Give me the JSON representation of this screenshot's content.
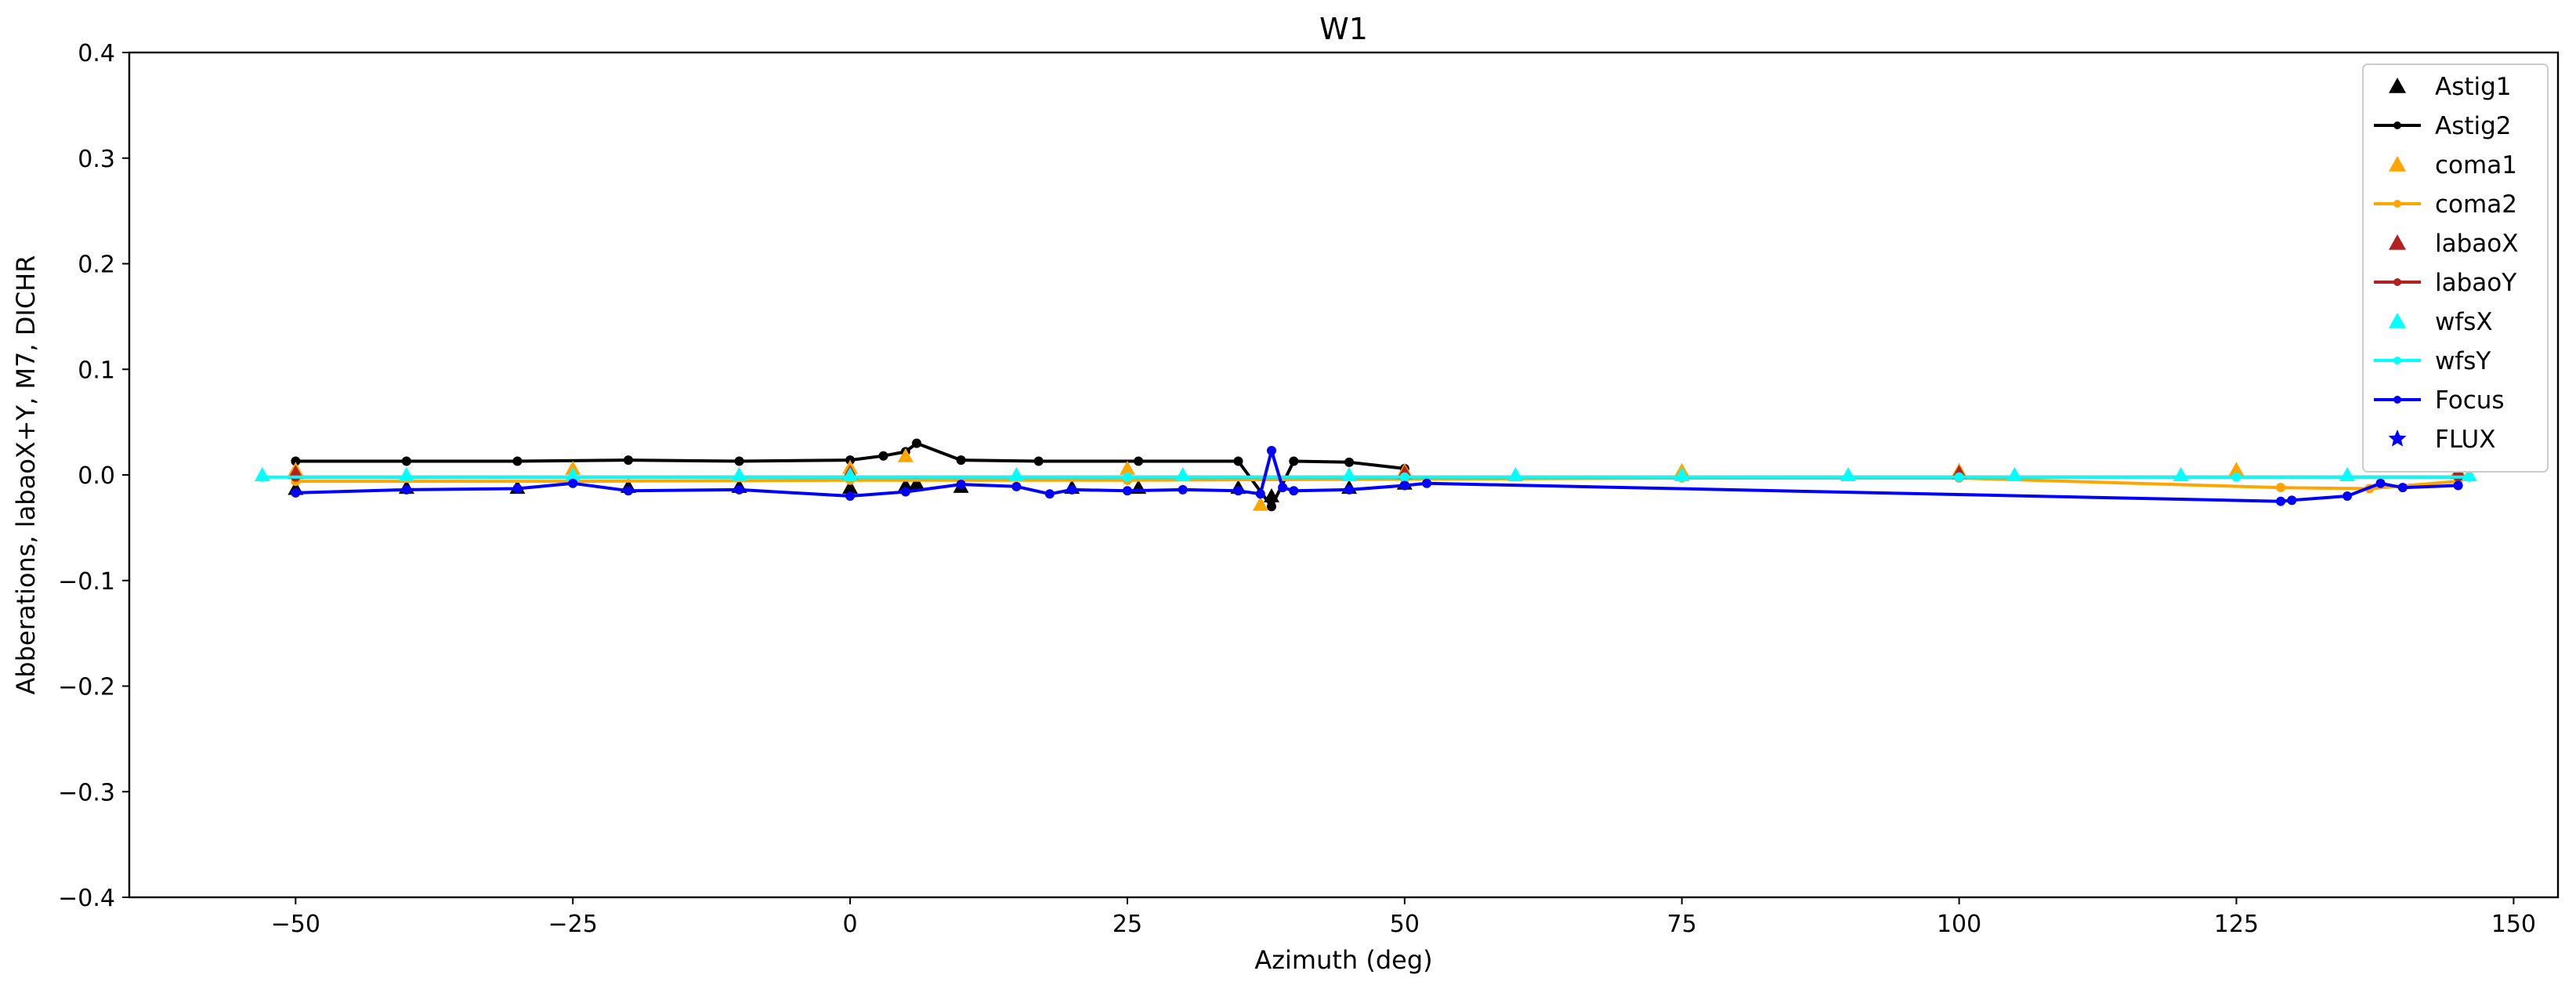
{
  "chart_data": {
    "type": "line",
    "title": "W1",
    "xlabel": "Azimuth (deg)",
    "ylabel": "Abberations, labaoX+Y, M7, DICHR",
    "xlim": [
      -65,
      154
    ],
    "ylim": [
      -0.4,
      0.4
    ],
    "xticks": [
      -50,
      -25,
      0,
      25,
      50,
      75,
      100,
      125,
      150
    ],
    "xtick_labels": [
      "−50",
      "−25",
      "0",
      "25",
      "50",
      "75",
      "100",
      "125",
      "150"
    ],
    "yticks": [
      -0.4,
      -0.3,
      -0.2,
      -0.1,
      0.0,
      0.1,
      0.2,
      0.3,
      0.4
    ],
    "ytick_labels": [
      "−0.4",
      "−0.3",
      "−0.2",
      "−0.1",
      "0.0",
      "0.1",
      "0.2",
      "0.3",
      "0.4"
    ],
    "grid": false,
    "legend_position": "top-right",
    "series": [
      {
        "name": "Astig1",
        "color": "#000000",
        "marker": "triangle",
        "line": false,
        "x": [
          -50,
          -40,
          -30,
          -20,
          -10,
          0,
          5,
          6,
          10,
          20,
          26,
          35,
          38,
          45,
          50
        ],
        "y": [
          -0.013,
          -0.012,
          -0.012,
          -0.011,
          -0.011,
          -0.012,
          -0.01,
          -0.008,
          -0.011,
          -0.012,
          -0.012,
          -0.012,
          -0.02,
          -0.012,
          -0.008
        ]
      },
      {
        "name": "Astig2",
        "color": "#000000",
        "marker": "dot",
        "line": true,
        "x": [
          -50,
          -40,
          -30,
          -20,
          -10,
          0,
          3,
          5,
          6,
          10,
          17,
          26,
          35,
          38,
          40,
          45,
          50
        ],
        "y": [
          0.013,
          0.013,
          0.013,
          0.014,
          0.013,
          0.014,
          0.018,
          0.022,
          0.03,
          0.014,
          0.013,
          0.013,
          0.013,
          -0.03,
          0.013,
          0.012,
          0.006
        ]
      },
      {
        "name": "coma1",
        "color": "#ffa500",
        "marker": "triangle",
        "line": false,
        "x": [
          -50,
          -25,
          0,
          5,
          25,
          37,
          50,
          75,
          100,
          125,
          145
        ],
        "y": [
          0.005,
          0.006,
          0.007,
          0.018,
          0.006,
          -0.028,
          0.004,
          0.004,
          0.004,
          0.005,
          0.004
        ]
      },
      {
        "name": "coma2",
        "color": "#ffa500",
        "marker": "dot",
        "line": true,
        "x": [
          -50,
          -25,
          0,
          25,
          50,
          75,
          100,
          129,
          137,
          145
        ],
        "y": [
          -0.006,
          -0.006,
          -0.005,
          -0.005,
          -0.004,
          -0.003,
          -0.003,
          -0.012,
          -0.013,
          -0.006
        ]
      },
      {
        "name": "labaoX",
        "color": "#b22222",
        "marker": "triangle",
        "line": false,
        "x": [
          -50,
          0,
          50,
          100,
          145
        ],
        "y": [
          0.002,
          0.002,
          0.002,
          0.002,
          0.002
        ]
      },
      {
        "name": "labaoY",
        "color": "#b22222",
        "marker": "dot",
        "line": true,
        "x": [
          -50,
          0,
          50,
          100,
          145
        ],
        "y": [
          -0.002,
          -0.002,
          -0.002,
          -0.002,
          -0.002
        ]
      },
      {
        "name": "wfsX",
        "color": "#00ffff",
        "marker": "triangle",
        "line": false,
        "x": [
          -53,
          -40,
          -25,
          -10,
          0,
          15,
          30,
          45,
          60,
          75,
          90,
          105,
          120,
          135,
          146
        ],
        "y": [
          0.0,
          0.0,
          0.0,
          0.0,
          0.0,
          0.0,
          0.0,
          0.0,
          0.0,
          0.0,
          0.0,
          0.0,
          0.0,
          0.0,
          0.0
        ]
      },
      {
        "name": "wfsY",
        "color": "#00ffff",
        "marker": "dot",
        "line": true,
        "x": [
          -53,
          -25,
          0,
          25,
          50,
          75,
          100,
          125,
          146
        ],
        "y": [
          -0.002,
          -0.002,
          -0.002,
          -0.002,
          -0.002,
          -0.002,
          -0.002,
          -0.002,
          -0.002
        ]
      },
      {
        "name": "Focus",
        "color": "#0000ff",
        "marker": "dot",
        "line": true,
        "x": [
          -50,
          -40,
          -30,
          -25,
          -20,
          -10,
          0,
          5,
          10,
          15,
          18,
          20,
          25,
          30,
          35,
          37,
          38,
          39,
          40,
          45,
          50,
          52,
          129,
          130,
          135,
          138,
          140,
          145
        ],
        "y": [
          -0.017,
          -0.014,
          -0.013,
          -0.008,
          -0.015,
          -0.014,
          -0.02,
          -0.016,
          -0.009,
          -0.011,
          -0.018,
          -0.014,
          -0.015,
          -0.014,
          -0.015,
          -0.018,
          0.023,
          -0.012,
          -0.015,
          -0.014,
          -0.01,
          -0.008,
          -0.025,
          -0.024,
          -0.02,
          -0.008,
          -0.012,
          -0.01
        ]
      },
      {
        "name": "FLUX",
        "color": "#0000ff",
        "marker": "star",
        "line": false,
        "x": [],
        "y": []
      }
    ]
  }
}
